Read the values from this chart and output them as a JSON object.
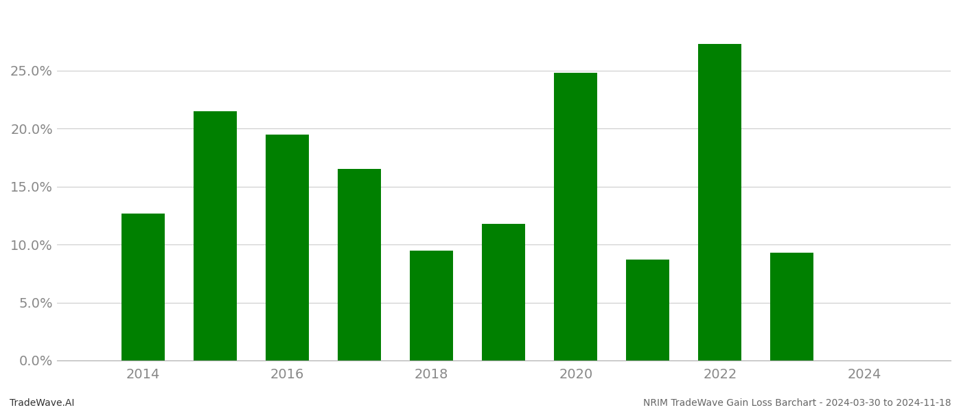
{
  "years": [
    2014,
    2015,
    2016,
    2017,
    2018,
    2019,
    2020,
    2021,
    2022,
    2023
  ],
  "values": [
    0.127,
    0.215,
    0.195,
    0.165,
    0.095,
    0.118,
    0.248,
    0.087,
    0.273,
    0.093
  ],
  "bar_color": "#008000",
  "background_color": "#ffffff",
  "grid_color": "#cccccc",
  "ylim_min": 0.0,
  "ylim_max": 0.295,
  "yticks": [
    0.0,
    0.05,
    0.1,
    0.15,
    0.2,
    0.25
  ],
  "xlim_min": 2012.8,
  "xlim_max": 2025.2,
  "xticks": [
    2014,
    2016,
    2018,
    2020,
    2022,
    2024
  ],
  "footer_left": "TradeWave.AI",
  "footer_right": "NRIM TradeWave Gain Loss Barchart - 2024-03-30 to 2024-11-18",
  "footer_fontsize": 10,
  "tick_fontsize": 14,
  "bar_width": 0.6,
  "axis_label_color": "#888888",
  "spine_color": "#aaaaaa"
}
